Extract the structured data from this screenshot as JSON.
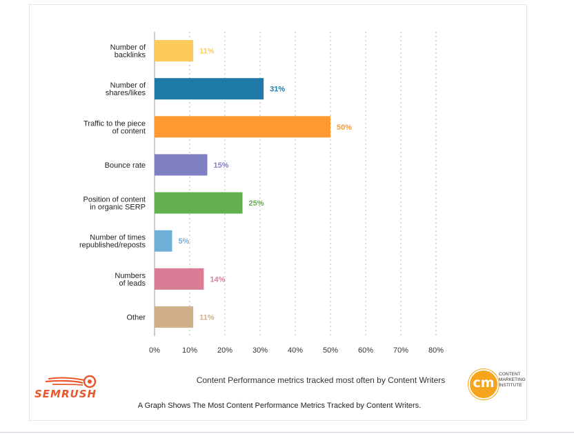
{
  "chart_data": {
    "type": "bar",
    "orientation": "horizontal",
    "categories": [
      [
        "Number of",
        "backlinks"
      ],
      [
        "Number of",
        "shares/likes"
      ],
      [
        "Traffic to the piece",
        "of content"
      ],
      [
        "Bounce rate"
      ],
      [
        "Position of content",
        "in organic SERP"
      ],
      [
        "Number of times",
        "republished/reposts"
      ],
      [
        "Numbers",
        "of leads"
      ],
      [
        "Other"
      ]
    ],
    "values": [
      11,
      31,
      50,
      15,
      25,
      5,
      14,
      11
    ],
    "value_labels": [
      "11%",
      "31%",
      "50%",
      "15%",
      "25%",
      "5%",
      "14%",
      "11%"
    ],
    "colors": [
      "#fdca5b",
      "#1f7aa8",
      "#ff9a32",
      "#7f80c2",
      "#63b04f",
      "#6fb0d9",
      "#d97c96",
      "#cfb08a"
    ],
    "xticks": [
      "0%",
      "10%",
      "20%",
      "30%",
      "40%",
      "50%",
      "60%",
      "70%",
      "80%"
    ],
    "xlim": [
      0,
      80
    ],
    "grid": "vertical dotted",
    "legend": "none"
  },
  "footer": {
    "source": "Content Performance metrics tracked most often by Content Writers",
    "caption": "A Graph Shows The Most Content Performance Metrics Tracked by Content Writers.",
    "semrush_logo": "SEMRUSH",
    "cmi_logo": {
      "mark": "cm",
      "lines": [
        "CONTENT",
        "MARKETING",
        "INSTITUTE"
      ]
    }
  }
}
